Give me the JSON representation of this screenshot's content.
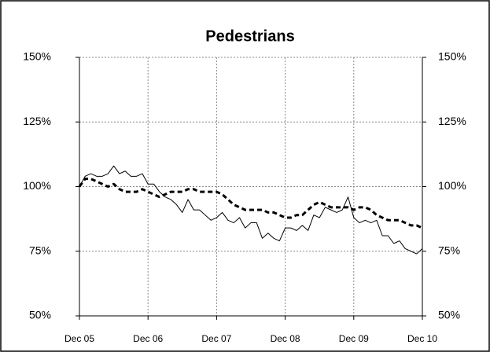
{
  "chart_data": {
    "type": "line",
    "title": "Pedestrians",
    "categories": [
      "Dec 05",
      null,
      null,
      null,
      null,
      null,
      null,
      null,
      null,
      null,
      null,
      null,
      "Dec 06",
      null,
      null,
      null,
      null,
      null,
      null,
      null,
      null,
      null,
      null,
      null,
      "Dec 07",
      null,
      null,
      null,
      null,
      null,
      null,
      null,
      null,
      null,
      null,
      null,
      "Dec 08",
      null,
      null,
      null,
      null,
      null,
      null,
      null,
      null,
      null,
      null,
      null,
      "Dec 09",
      null,
      null,
      null,
      null,
      null,
      null,
      null,
      null,
      null,
      null,
      null,
      "Dec 10"
    ],
    "series": [
      {
        "color": "#000000",
        "dashed": false,
        "values": [
          100,
          104,
          105,
          104,
          104,
          105,
          108,
          105,
          106,
          104,
          104,
          105,
          101,
          101,
          98,
          96,
          95,
          93,
          90,
          95,
          91,
          91,
          89,
          87,
          88,
          90,
          87,
          86,
          88,
          84,
          86,
          86,
          80,
          82,
          80,
          79,
          84,
          84,
          83,
          85,
          83,
          89,
          88,
          92,
          91,
          90,
          91,
          96,
          88,
          86,
          87,
          86,
          87,
          81,
          81,
          78,
          79,
          76,
          75,
          74,
          76
        ]
      },
      {
        "color": "#000000",
        "dashed": true,
        "values": [
          100,
          103,
          103,
          102,
          101,
          100,
          101,
          99,
          98,
          98,
          98,
          99,
          98,
          97,
          96,
          97,
          98,
          98,
          98,
          99,
          99,
          98,
          98,
          98,
          98,
          97,
          95,
          93,
          92,
          91,
          91,
          91,
          91,
          90,
          90,
          89,
          88,
          88,
          89,
          89,
          91,
          93,
          94,
          93,
          92,
          92,
          92,
          92,
          91,
          92,
          92,
          91,
          89,
          88,
          87,
          87,
          87,
          86,
          85,
          85,
          84
        ]
      }
    ],
    "ylim": [
      50,
      150
    ],
    "yticks": [
      {
        "value": 50,
        "label": "50%"
      },
      {
        "value": 75,
        "label": "75%"
      },
      {
        "value": 100,
        "label": "100%"
      },
      {
        "value": 125,
        "label": "125%"
      },
      {
        "value": 150,
        "label": "150%"
      }
    ],
    "y2lim": [
      50,
      150
    ],
    "y2ticks": [
      {
        "value": 50,
        "label": "50%"
      },
      {
        "value": 75,
        "label": "75%"
      },
      {
        "value": 100,
        "label": "100%"
      },
      {
        "value": 125,
        "label": "125%"
      },
      {
        "value": 150,
        "label": "150%"
      }
    ],
    "grid": true
  }
}
